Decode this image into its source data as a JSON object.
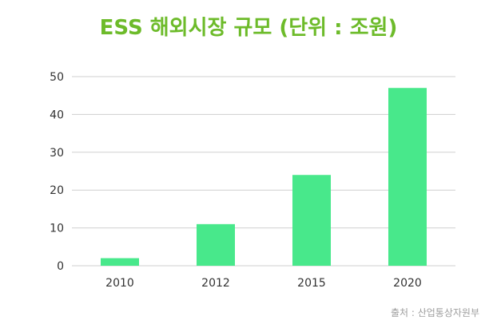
{
  "colors": {
    "title": "#6dbb2a",
    "bar": "#48e88b",
    "grid": "#cfcfcf",
    "source": "#9e9e9e"
  },
  "chart_data": {
    "type": "bar",
    "title": "ESS 해외시장 규모 (단위 : 조원)",
    "categories": [
      "2010",
      "2012",
      "2015",
      "2020"
    ],
    "values": [
      2,
      11,
      24,
      47
    ],
    "yticks": [
      0,
      10,
      20,
      30,
      40,
      50
    ],
    "ylim": [
      0,
      50
    ],
    "xlabel": "",
    "ylabel": "",
    "grid": true,
    "legend": false,
    "source": "출처 : 산업통상자원부"
  }
}
